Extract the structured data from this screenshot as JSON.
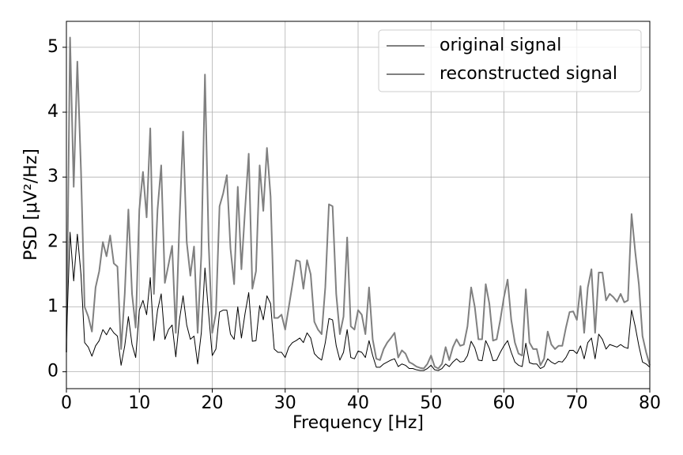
{
  "chart_data": {
    "type": "line",
    "xlabel": "Frequency [Hz]",
    "ylabel": "PSD [μV²/Hz]",
    "x": [
      0,
      0.5,
      1,
      1.5,
      2,
      2.5,
      3,
      3.5,
      4,
      4.5,
      5,
      5.5,
      6,
      6.5,
      7,
      7.5,
      8,
      8.5,
      9,
      9.5,
      10,
      10.5,
      11,
      11.5,
      12,
      12.5,
      13,
      13.5,
      14,
      14.5,
      15,
      15.5,
      16,
      16.5,
      17,
      17.5,
      18,
      18.5,
      19,
      19.5,
      20,
      20.5,
      21,
      21.5,
      22,
      22.5,
      23,
      23.5,
      24,
      24.5,
      25,
      25.5,
      26,
      26.5,
      27,
      27.5,
      28,
      28.5,
      29,
      29.5,
      30,
      30.5,
      31,
      31.5,
      32,
      32.5,
      33,
      33.5,
      34,
      34.5,
      35,
      35.5,
      36,
      36.5,
      37,
      37.5,
      38,
      38.5,
      39,
      39.5,
      40,
      40.5,
      41,
      41.5,
      42,
      42.5,
      43,
      43.5,
      44,
      44.5,
      45,
      45.5,
      46,
      46.5,
      47,
      47.5,
      48,
      48.5,
      49,
      49.5,
      50,
      50.5,
      51,
      51.5,
      52,
      52.5,
      53,
      53.5,
      54,
      54.5,
      55,
      55.5,
      56,
      56.5,
      57,
      57.5,
      58,
      58.5,
      59,
      59.5,
      60,
      60.5,
      61,
      61.5,
      62,
      62.5,
      63,
      63.5,
      64,
      64.5,
      65,
      65.5,
      66,
      66.5,
      67,
      67.5,
      68,
      68.5,
      69,
      69.5,
      70,
      70.5,
      71,
      71.5,
      72,
      72.5,
      73,
      73.5,
      74,
      74.5,
      75,
      75.5,
      76,
      76.5,
      77,
      77.5,
      78,
      78.5,
      79,
      79.5,
      80
    ],
    "series": [
      {
        "name": "original signal",
        "color": "#808080",
        "width": 2,
        "values": [
          0.3,
          5.15,
          2.85,
          4.78,
          3.1,
          1.0,
          0.85,
          0.62,
          1.3,
          1.55,
          2.0,
          1.78,
          2.1,
          1.67,
          1.62,
          0.35,
          1.2,
          2.5,
          1.2,
          0.68,
          2.5,
          3.08,
          2.38,
          3.75,
          1.2,
          2.5,
          3.18,
          1.37,
          1.65,
          1.94,
          0.6,
          2.3,
          3.7,
          2.0,
          1.48,
          1.93,
          0.6,
          1.8,
          4.58,
          2.0,
          0.6,
          0.9,
          2.55,
          2.75,
          3.03,
          1.9,
          1.35,
          2.85,
          1.58,
          2.5,
          3.36,
          1.28,
          1.55,
          3.18,
          2.48,
          3.45,
          2.7,
          0.83,
          0.83,
          0.88,
          0.65,
          1.0,
          1.35,
          1.72,
          1.7,
          1.28,
          1.72,
          1.5,
          0.77,
          0.65,
          0.58,
          1.3,
          2.58,
          2.55,
          1.2,
          0.58,
          0.85,
          2.07,
          0.7,
          0.65,
          0.95,
          0.88,
          0.58,
          1.3,
          0.5,
          0.2,
          0.18,
          0.35,
          0.45,
          0.52,
          0.6,
          0.22,
          0.33,
          0.28,
          0.15,
          0.12,
          0.08,
          0.06,
          0.05,
          0.12,
          0.25,
          0.08,
          0.05,
          0.12,
          0.38,
          0.18,
          0.38,
          0.5,
          0.4,
          0.42,
          0.7,
          1.3,
          1.0,
          0.5,
          0.5,
          1.35,
          1.05,
          0.48,
          0.5,
          0.8,
          1.15,
          1.42,
          0.8,
          0.45,
          0.28,
          0.25,
          1.27,
          0.45,
          0.35,
          0.35,
          0.1,
          0.2,
          0.62,
          0.42,
          0.35,
          0.4,
          0.4,
          0.68,
          0.92,
          0.93,
          0.8,
          1.32,
          0.6,
          1.3,
          1.58,
          0.6,
          1.53,
          1.53,
          1.1,
          1.2,
          1.15,
          1.08,
          1.2,
          1.07,
          1.1,
          2.43,
          1.85,
          1.35,
          0.55,
          0.3,
          0.1
        ]
      },
      {
        "name": "reconstructed signal",
        "color": "#000000",
        "width": 1,
        "values": [
          0.5,
          2.15,
          1.4,
          2.12,
          1.5,
          0.45,
          0.38,
          0.24,
          0.4,
          0.48,
          0.65,
          0.57,
          0.68,
          0.6,
          0.55,
          0.1,
          0.4,
          0.85,
          0.42,
          0.22,
          0.95,
          1.1,
          0.88,
          1.45,
          0.48,
          0.95,
          1.2,
          0.5,
          0.65,
          0.72,
          0.23,
          0.8,
          1.17,
          0.72,
          0.5,
          0.55,
          0.12,
          0.6,
          1.6,
          0.9,
          0.25,
          0.35,
          0.92,
          0.95,
          0.95,
          0.58,
          0.5,
          1.0,
          0.52,
          0.9,
          1.22,
          0.47,
          0.48,
          1.02,
          0.8,
          1.17,
          1.05,
          0.35,
          0.3,
          0.3,
          0.22,
          0.38,
          0.45,
          0.48,
          0.52,
          0.45,
          0.6,
          0.52,
          0.28,
          0.22,
          0.18,
          0.45,
          0.82,
          0.8,
          0.4,
          0.18,
          0.3,
          0.65,
          0.22,
          0.2,
          0.32,
          0.3,
          0.22,
          0.48,
          0.25,
          0.07,
          0.07,
          0.12,
          0.15,
          0.18,
          0.2,
          0.08,
          0.12,
          0.1,
          0.05,
          0.05,
          0.03,
          0.02,
          0.02,
          0.05,
          0.1,
          0.03,
          0.02,
          0.05,
          0.12,
          0.08,
          0.15,
          0.2,
          0.15,
          0.16,
          0.25,
          0.47,
          0.37,
          0.18,
          0.17,
          0.48,
          0.36,
          0.17,
          0.18,
          0.3,
          0.4,
          0.48,
          0.3,
          0.15,
          0.1,
          0.08,
          0.44,
          0.14,
          0.12,
          0.12,
          0.05,
          0.08,
          0.2,
          0.15,
          0.12,
          0.16,
          0.15,
          0.22,
          0.33,
          0.33,
          0.28,
          0.4,
          0.2,
          0.45,
          0.52,
          0.2,
          0.58,
          0.5,
          0.35,
          0.42,
          0.4,
          0.38,
          0.42,
          0.38,
          0.36,
          0.95,
          0.7,
          0.4,
          0.15,
          0.12,
          0.07
        ]
      }
    ],
    "xlim": [
      0,
      80
    ],
    "ylim": [
      -0.26,
      5.4
    ],
    "xticks": [
      0,
      10,
      20,
      30,
      40,
      50,
      60,
      70,
      80
    ],
    "yticks": [
      0,
      1,
      2,
      3,
      4,
      5
    ],
    "grid": true,
    "legend": "upper right"
  }
}
